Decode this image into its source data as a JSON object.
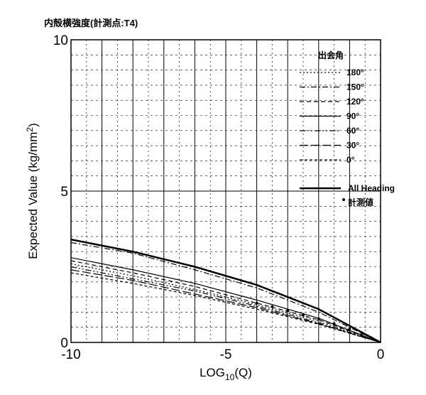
{
  "chart_data": {
    "type": "line",
    "title": "内殻横強度(計測点:T4)",
    "xlabel": "LOG",
    "xlabel_sub": "10",
    "xlabel_tail": "(Q)",
    "ylabel": "Expected Value (kg/mm",
    "ylabel_sup": "2",
    "ylabel_tail": ")",
    "xlim": [
      -10,
      0
    ],
    "ylim": [
      0,
      10
    ],
    "x_ticks": [
      -10,
      -5,
      0
    ],
    "x_tick_labels": [
      "-10",
      "-5",
      "0"
    ],
    "y_ticks": [
      0,
      5,
      10
    ],
    "y_tick_labels": [
      "0",
      "5",
      "10"
    ],
    "grid": true,
    "legend": {
      "title": "出会角",
      "placement": "right",
      "entries": [
        "180°",
        "150°",
        "120°",
        "90°",
        "60°",
        "30°",
        "0°",
        "All Heading",
        "計測値"
      ]
    },
    "series": [
      {
        "name": "180°",
        "style": "dotted",
        "x": [
          -10,
          -8,
          -6,
          -4,
          -2,
          0
        ],
        "y": [
          2.6,
          2.2,
          1.75,
          1.25,
          0.7,
          0
        ]
      },
      {
        "name": "150°",
        "style": "dashdot",
        "x": [
          -10,
          -8,
          -6,
          -4,
          -2,
          0
        ],
        "y": [
          3.3,
          2.95,
          2.4,
          1.8,
          1.0,
          0
        ]
      },
      {
        "name": "120°",
        "style": "dashed",
        "x": [
          -10,
          -8,
          -6,
          -4,
          -2,
          0
        ],
        "y": [
          2.7,
          2.3,
          1.85,
          1.3,
          0.75,
          0
        ]
      },
      {
        "name": "90°",
        "style": "solid-thin",
        "x": [
          -10,
          -8,
          -6,
          -4,
          -2,
          0
        ],
        "y": [
          2.8,
          2.4,
          1.95,
          1.4,
          0.8,
          0
        ]
      },
      {
        "name": "60°",
        "style": "dashdotdot",
        "x": [
          -10,
          -8,
          -6,
          -4,
          -2,
          0
        ],
        "y": [
          2.5,
          2.1,
          1.7,
          1.2,
          0.65,
          0
        ]
      },
      {
        "name": "30°",
        "style": "longdash",
        "x": [
          -10,
          -8,
          -6,
          -4,
          -2,
          0
        ],
        "y": [
          2.4,
          2.05,
          1.6,
          1.15,
          0.62,
          0
        ]
      },
      {
        "name": "0°",
        "style": "shortdash",
        "x": [
          -10,
          -8,
          -6,
          -4,
          -2,
          0
        ],
        "y": [
          2.3,
          1.95,
          1.55,
          1.1,
          0.6,
          0
        ]
      },
      {
        "name": "All Heading",
        "style": "solid-thick",
        "x": [
          -10,
          -8,
          -6,
          -4,
          -2,
          0
        ],
        "y": [
          3.4,
          3.0,
          2.5,
          1.9,
          1.1,
          0
        ]
      }
    ],
    "points": {
      "name": "計測値",
      "x": [
        -4.0,
        -3.5,
        -3.0,
        -2.5,
        -2.0,
        -1.5,
        -1.0,
        -0.6,
        -0.3
      ],
      "y": [
        1.3,
        1.18,
        1.05,
        0.9,
        0.78,
        0.62,
        0.45,
        0.3,
        0.15
      ]
    },
    "colors": {
      "line": "#000000",
      "background": "#ffffff"
    }
  }
}
